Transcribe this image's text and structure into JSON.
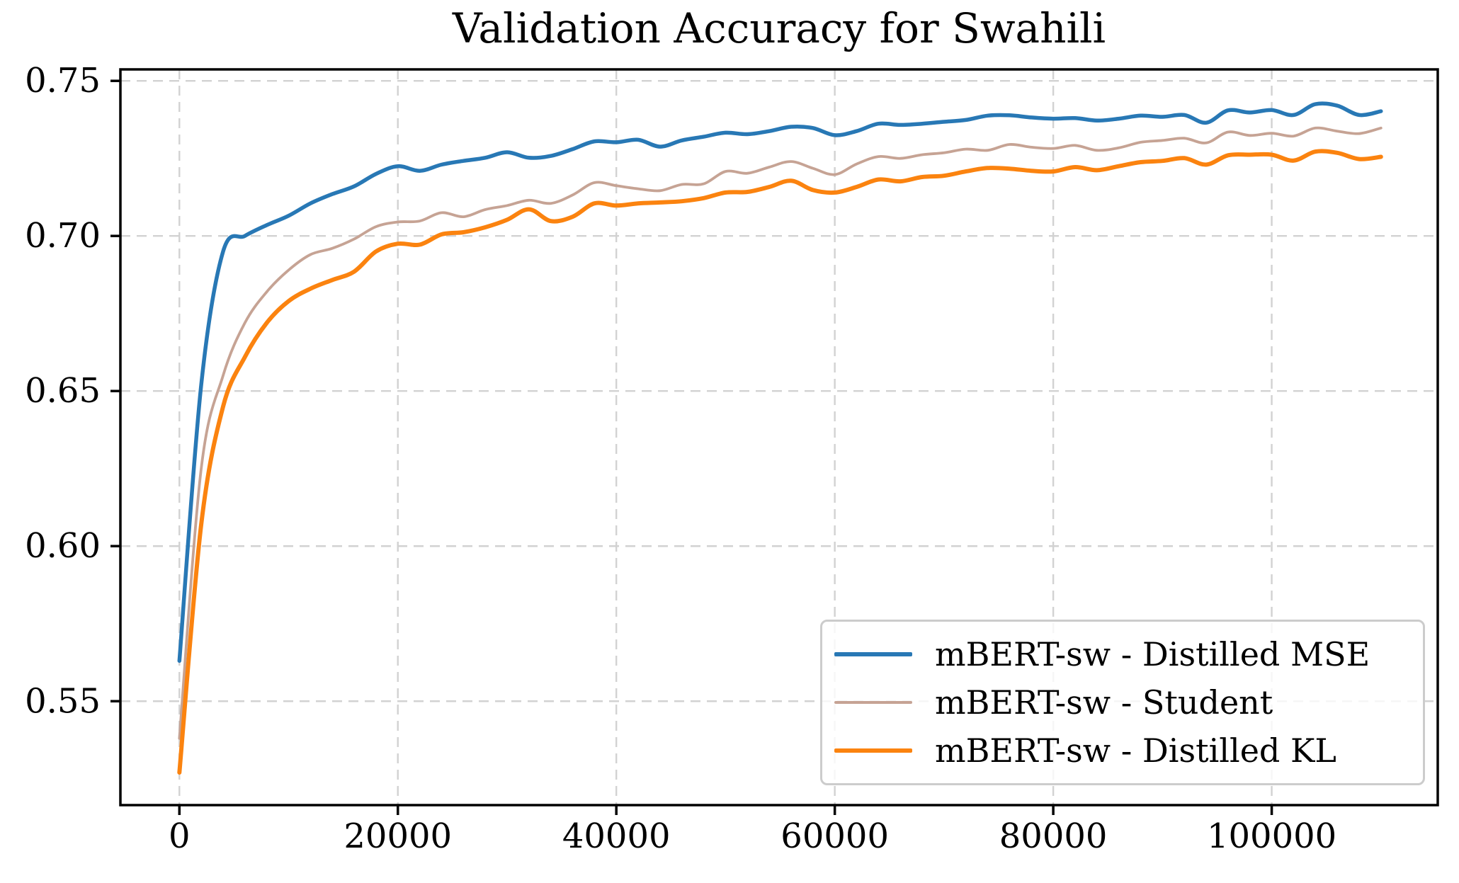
{
  "chart_data": {
    "type": "line",
    "title": "Validation Accuracy for Swahili",
    "xlabel": "",
    "ylabel": "",
    "grid": true,
    "grid_color": "#d2d2d2",
    "axis_color": "#000000",
    "background_color": "#ffffff",
    "legend_position": "lower right",
    "xlim": [
      -5400,
      115200
    ],
    "ylim": [
      0.5165,
      0.7537
    ],
    "x_ticks": [
      0,
      20000,
      40000,
      60000,
      80000,
      100000
    ],
    "x_tick_labels": [
      "0",
      "20000",
      "40000",
      "60000",
      "80000",
      "100000"
    ],
    "y_ticks": [
      0.55,
      0.6,
      0.65,
      0.7,
      0.75
    ],
    "y_tick_labels": [
      "0.55",
      "0.60",
      "0.65",
      "0.70",
      "0.75"
    ],
    "x_start": 0,
    "x_step": 2000,
    "x_end": 110000,
    "series": [
      {
        "name": "mBERT-sw - Distilled MSE",
        "color": "#2878b5",
        "line_width": 5.5,
        "values": [
          0.563,
          0.652,
          0.695,
          0.7,
          0.7035,
          0.7065,
          0.7105,
          0.7135,
          0.716,
          0.72,
          0.7225,
          0.721,
          0.723,
          0.7242,
          0.7252,
          0.727,
          0.7252,
          0.7258,
          0.728,
          0.7305,
          0.7302,
          0.731,
          0.7288,
          0.7308,
          0.732,
          0.7333,
          0.7328,
          0.7338,
          0.7352,
          0.7348,
          0.7325,
          0.7338,
          0.7362,
          0.7358,
          0.7362,
          0.7368,
          0.7374,
          0.7388,
          0.7389,
          0.7382,
          0.7378,
          0.738,
          0.7372,
          0.7378,
          0.7388,
          0.7384,
          0.739,
          0.7365,
          0.7405,
          0.7398,
          0.7406,
          0.739,
          0.7425,
          0.742,
          0.739,
          0.7402
        ]
      },
      {
        "name": "mBERT-sw - Student",
        "color": "#c6a394",
        "line_width": 3.8,
        "values": [
          0.538,
          0.625,
          0.655,
          0.672,
          0.682,
          0.689,
          0.694,
          0.696,
          0.699,
          0.703,
          0.7045,
          0.7048,
          0.7075,
          0.7062,
          0.7085,
          0.7098,
          0.7115,
          0.7105,
          0.7132,
          0.7172,
          0.7162,
          0.7152,
          0.7146,
          0.7166,
          0.7168,
          0.7208,
          0.7202,
          0.7222,
          0.724,
          0.7218,
          0.7198,
          0.7232,
          0.7256,
          0.725,
          0.7262,
          0.7268,
          0.728,
          0.7276,
          0.7295,
          0.7286,
          0.7282,
          0.7292,
          0.7276,
          0.7284,
          0.7302,
          0.7308,
          0.7315,
          0.73,
          0.7335,
          0.7324,
          0.7331,
          0.7322,
          0.7348,
          0.7338,
          0.733,
          0.7348
        ]
      },
      {
        "name": "mBERT-sw - Distilled KL",
        "color": "#fb830f",
        "line_width": 6,
        "values": [
          0.527,
          0.607,
          0.645,
          0.661,
          0.672,
          0.679,
          0.683,
          0.6858,
          0.6885,
          0.695,
          0.6975,
          0.6972,
          0.7005,
          0.7012,
          0.7028,
          0.7052,
          0.7086,
          0.7048,
          0.7062,
          0.7105,
          0.7098,
          0.7105,
          0.7108,
          0.7112,
          0.7122,
          0.714,
          0.7142,
          0.7158,
          0.7178,
          0.7148,
          0.714,
          0.7158,
          0.7182,
          0.7176,
          0.719,
          0.7194,
          0.7208,
          0.7219,
          0.7217,
          0.721,
          0.7208,
          0.7222,
          0.7212,
          0.7225,
          0.7238,
          0.7242,
          0.7251,
          0.723,
          0.726,
          0.7262,
          0.7262,
          0.7243,
          0.7272,
          0.7268,
          0.7248,
          0.7255
        ]
      }
    ]
  }
}
